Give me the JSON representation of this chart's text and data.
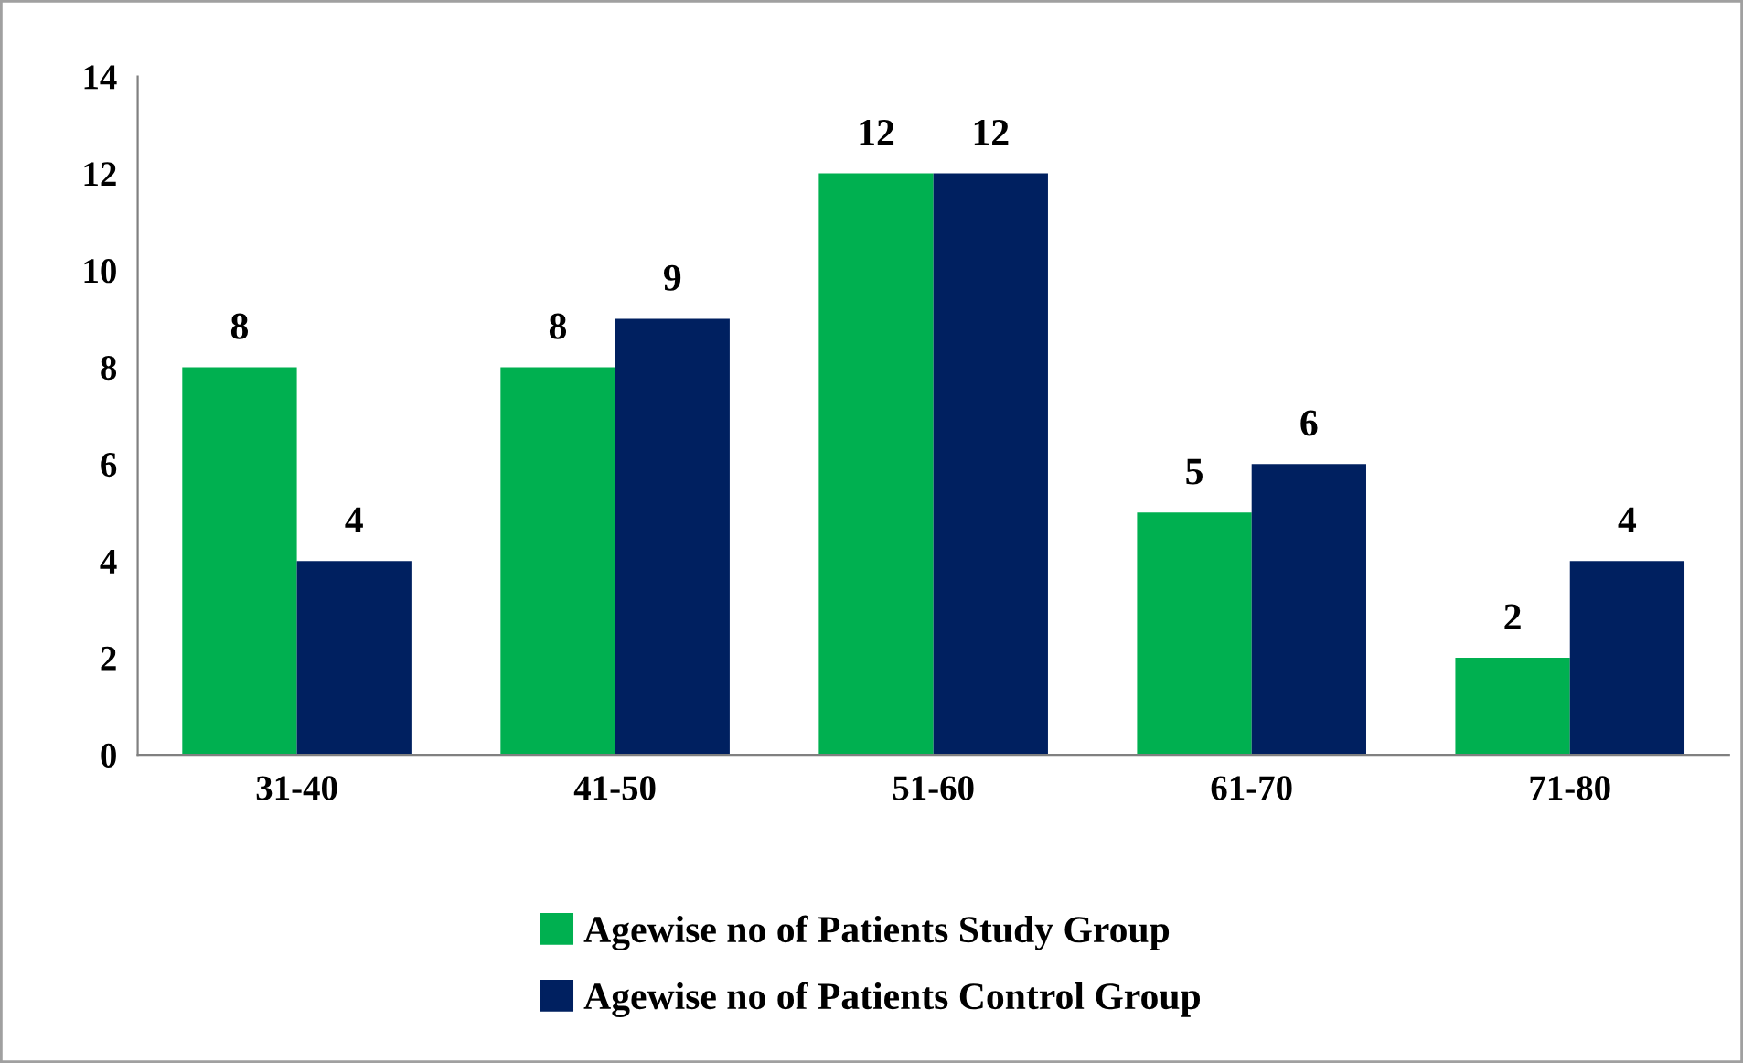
{
  "chart_data": {
    "type": "bar",
    "categories": [
      "31-40",
      "41-50",
      "51-60",
      "61-70",
      "71-80"
    ],
    "series": [
      {
        "name": "Agewise no of Patients Study Group",
        "color": "#00b050",
        "values": [
          8,
          8,
          12,
          5,
          2
        ]
      },
      {
        "name": "Agewise no of Patients Control Group",
        "color": "#002060",
        "values": [
          4,
          9,
          12,
          6,
          4
        ]
      }
    ],
    "ylim": [
      0,
      14
    ],
    "yticks": [
      0,
      2,
      4,
      6,
      8,
      10,
      12,
      14
    ],
    "grid": false,
    "legend": "bottom",
    "data_labels": true
  }
}
